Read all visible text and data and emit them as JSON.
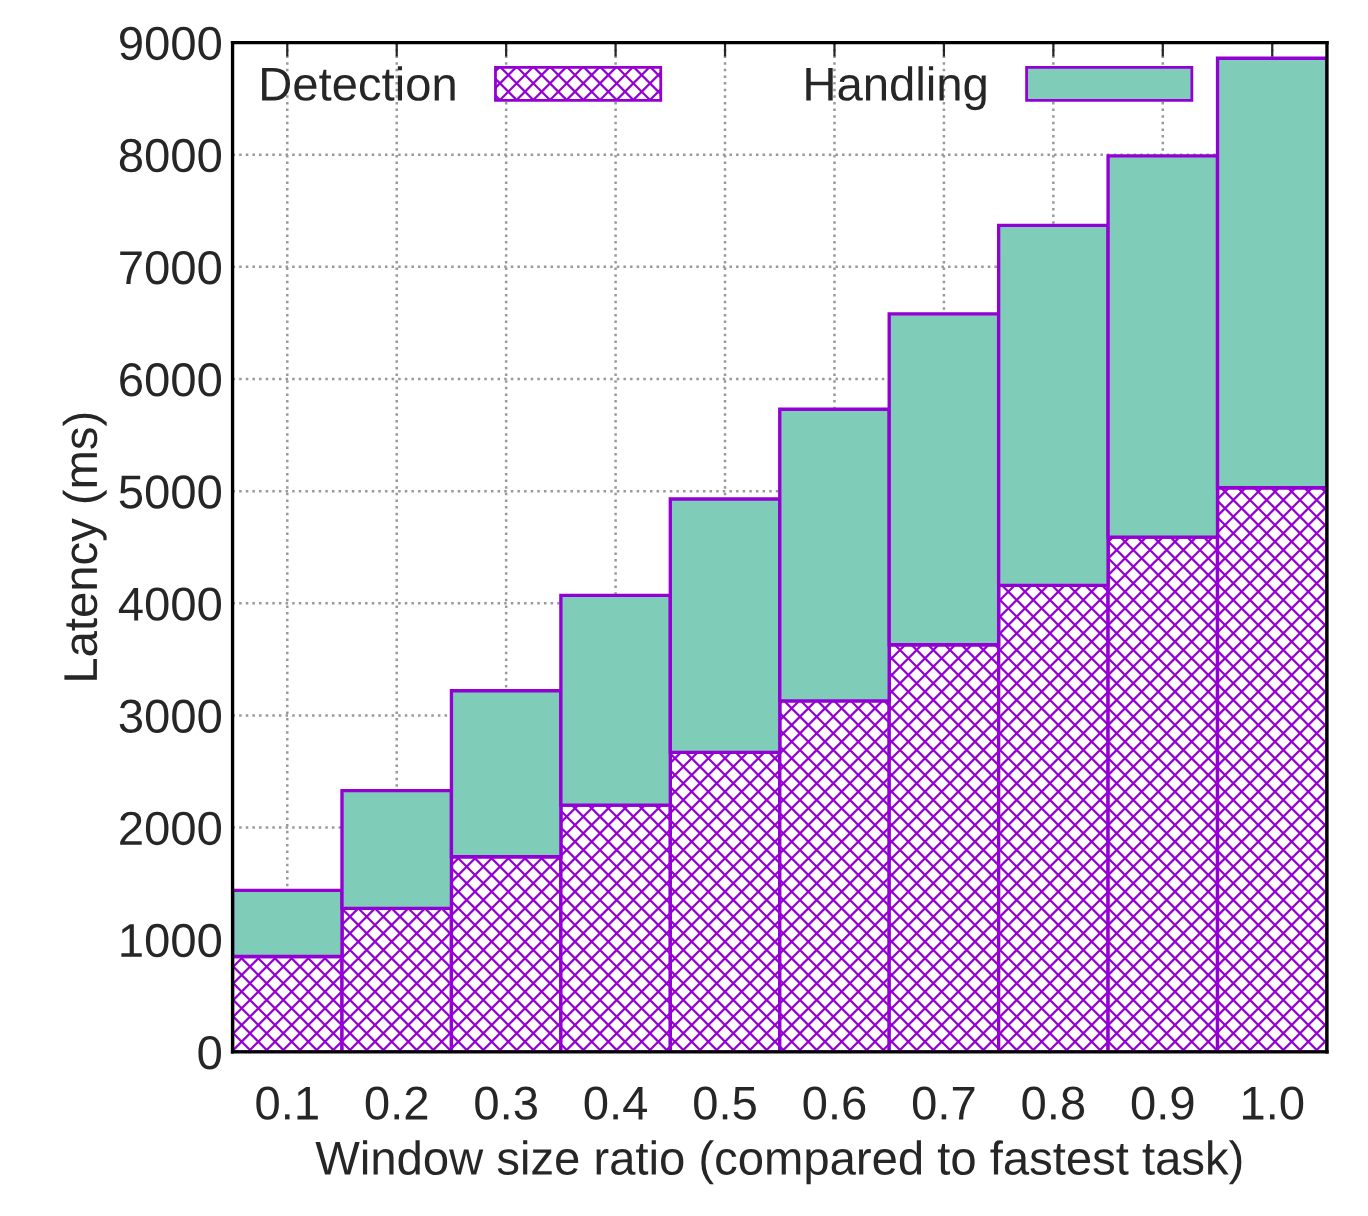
{
  "chart_data": {
    "type": "bar",
    "stacked": true,
    "xlabel": "Window size ratio (compared to fastest task)",
    "ylabel": "Latency (ms)",
    "categories": [
      "0.1",
      "0.2",
      "0.3",
      "0.4",
      "0.5",
      "0.6",
      "0.7",
      "0.8",
      "0.9",
      "1.0"
    ],
    "series": [
      {
        "name": "Detection",
        "color": "#9400d3",
        "values": [
          850,
          1280,
          1740,
          2200,
          2670,
          3130,
          3630,
          4160,
          4590,
          5030
        ]
      },
      {
        "name": "Handling",
        "color": "#7fcdb8",
        "values": [
          590,
          1050,
          1480,
          1870,
          2260,
          2600,
          2950,
          3210,
          3400,
          3830
        ]
      }
    ],
    "ylim": [
      0,
      9000
    ],
    "yticks": [
      0,
      1000,
      2000,
      3000,
      4000,
      5000,
      6000,
      7000,
      8000,
      9000
    ],
    "grid": true,
    "legend": "top"
  }
}
